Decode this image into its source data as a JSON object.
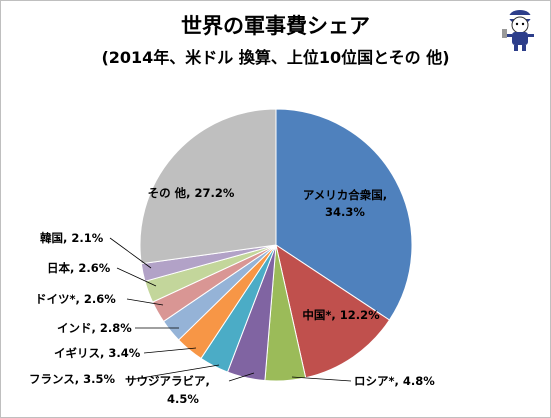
{
  "chart_data": {
    "type": "pie",
    "title": "世界の軍事費シェア",
    "subtitle": "(2014年、米ドル 換算、上位10位国とその 他)",
    "slices": [
      {
        "label": "アメリカ合衆国",
        "value": 34.3,
        "text": "34.3%",
        "color": "#4F81BD"
      },
      {
        "label": "中国*",
        "value": 12.2,
        "text": "12.2%",
        "color": "#C0504D"
      },
      {
        "label": "ロシア*",
        "value": 4.8,
        "text": "4.8%",
        "color": "#9BBB59"
      },
      {
        "label": "サウジアラビア",
        "value": 4.5,
        "text": "4.5%",
        "color": "#8064A2"
      },
      {
        "label": "フランス",
        "value": 3.5,
        "text": "3.5%",
        "color": "#4BACC6"
      },
      {
        "label": "イギリス",
        "value": 3.4,
        "text": "3.4%",
        "color": "#F79646"
      },
      {
        "label": "インド",
        "value": 2.8,
        "text": "2.8%",
        "color": "#95B3D7"
      },
      {
        "label": "ドイツ*",
        "value": 2.6,
        "text": "2.6%",
        "color": "#D99694"
      },
      {
        "label": "日本",
        "value": 2.6,
        "text": "2.6%",
        "color": "#C3D69B"
      },
      {
        "label": "韓国",
        "value": 2.1,
        "text": "2.1%",
        "color": "#B2A2C7"
      },
      {
        "label": "その 他",
        "value": 27.2,
        "text": "27.2%",
        "color": "#BFBFBF"
      }
    ]
  }
}
